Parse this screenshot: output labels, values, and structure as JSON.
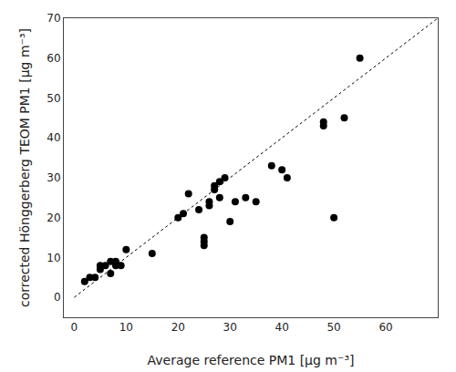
{
  "chart_data": {
    "type": "scatter",
    "xlabel": "Average reference PM1 [μg m⁻³]",
    "ylabel": "corrected Hönggerberg TEOM PM1 [μg m⁻³]",
    "xlim": [
      -2,
      70
    ],
    "ylim": [
      -5,
      70
    ],
    "xticks": [
      0,
      10,
      20,
      30,
      40,
      50,
      60
    ],
    "yticks": [
      0,
      10,
      20,
      30,
      40,
      50,
      60,
      70
    ],
    "grid": false,
    "series": [
      {
        "type": "line",
        "line_style": "dotted",
        "color": "#000000",
        "x": [
          0,
          70
        ],
        "values": [
          0,
          70
        ]
      },
      {
        "type": "scatter",
        "marker": "circle",
        "color": "#000000",
        "x": [
          2,
          3,
          4,
          5,
          5,
          6,
          7,
          7,
          8,
          8,
          9,
          10,
          15,
          20,
          21,
          22,
          24,
          25,
          25,
          25,
          26,
          26,
          27,
          27,
          28,
          28,
          29,
          30,
          31,
          33,
          35,
          38,
          40,
          41,
          48,
          48,
          50,
          52,
          55
        ],
        "values": [
          4,
          5,
          5,
          8,
          7,
          8,
          9,
          6,
          8,
          9,
          8,
          12,
          11,
          20,
          21,
          26,
          22,
          15,
          14,
          13,
          24,
          23,
          27,
          28,
          25,
          29,
          30,
          19,
          24,
          25,
          24,
          33,
          32,
          30,
          44,
          43,
          20,
          45,
          60
        ]
      }
    ]
  }
}
